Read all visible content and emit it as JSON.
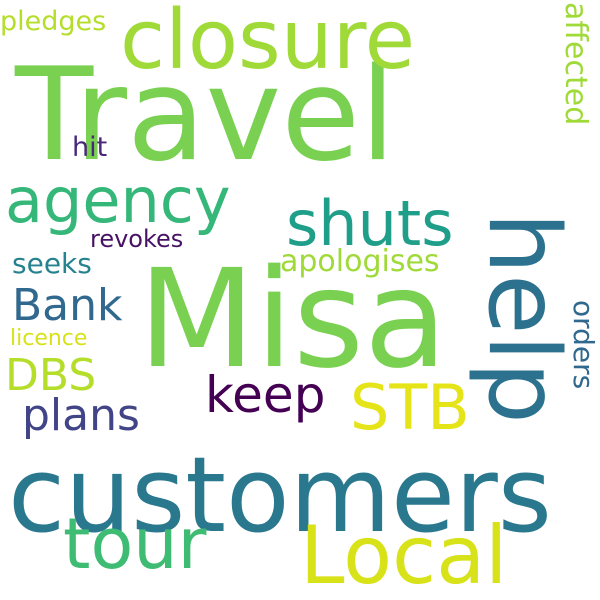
{
  "word_cloud": {
    "background": "#ffffff",
    "words": {
      "travel": {
        "text": "Travel",
        "color": "#7ad151"
      },
      "misa": {
        "text": "Misa",
        "color": "#7ad151"
      },
      "customers": {
        "text": "customers",
        "color": "#2a788e"
      },
      "closure": {
        "text": "closure",
        "color": "#a0da39"
      },
      "help": {
        "text": "help",
        "color": "#2c728e"
      },
      "local": {
        "text": "Local",
        "color": "#d8e219"
      },
      "tour": {
        "text": "tour",
        "color": "#3fbc73"
      },
      "agency": {
        "text": "agency",
        "color": "#35b779"
      },
      "shuts": {
        "text": "shuts",
        "color": "#1f9e89"
      },
      "stb": {
        "text": "STB",
        "color": "#e5e419"
      },
      "keep": {
        "text": "keep",
        "color": "#440154"
      },
      "bank": {
        "text": "Bank",
        "color": "#31688e"
      },
      "dbs": {
        "text": "DBS",
        "color": "#b5de2b"
      },
      "plans": {
        "text": "plans",
        "color": "#414487"
      },
      "affected": {
        "text": "affected",
        "color": "#a0da39"
      },
      "apologises": {
        "text": "apologises",
        "color": "#a0da39"
      },
      "orders": {
        "text": "orders",
        "color": "#31688e"
      },
      "seeks": {
        "text": "seeks",
        "color": "#26828e"
      },
      "pledges": {
        "text": "pledges",
        "color": "#b5de2b"
      },
      "hit": {
        "text": "hit",
        "color": "#482878"
      },
      "revokes": {
        "text": "revokes",
        "color": "#471164"
      },
      "licence": {
        "text": "licence",
        "color": "#d8e219"
      }
    }
  }
}
